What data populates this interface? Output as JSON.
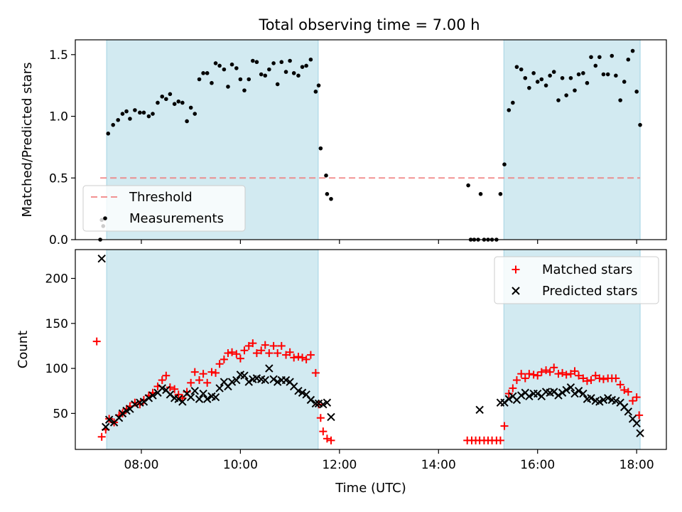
{
  "chart_data": [
    {
      "type": "scatter",
      "title": "Total observing time = 7.00 h",
      "xlabel": "",
      "ylabel": "Matched/Predicted stars",
      "xlim": [
        6.6667,
        18.6
      ],
      "ylim": [
        0,
        1.62
      ],
      "yticks": [
        0.0,
        0.5,
        1.0,
        1.5
      ],
      "ytick_labels": [
        "0.0",
        "0.5",
        "1.0",
        "1.5"
      ],
      "shaded_intervals": [
        [
          7.3,
          11.57
        ],
        [
          15.32,
          18.07
        ]
      ],
      "shade_color": "#add8e6",
      "threshold": {
        "name": "Threshold",
        "value": 0.5,
        "x_range": [
          7.17,
          18.07
        ],
        "color": "#f08080"
      },
      "legend": {
        "position": "lower-left",
        "entries": [
          "Threshold",
          "Measurements"
        ]
      },
      "series": [
        {
          "name": "Measurements",
          "color": "#000000",
          "x": [
            7.17,
            7.2,
            7.23,
            7.33,
            7.43,
            7.53,
            7.62,
            7.7,
            7.77,
            7.87,
            7.97,
            8.05,
            8.15,
            8.23,
            8.33,
            8.42,
            8.5,
            8.58,
            8.67,
            8.75,
            8.83,
            8.92,
            9.0,
            9.08,
            9.17,
            9.25,
            9.33,
            9.42,
            9.5,
            9.58,
            9.67,
            9.75,
            9.83,
            9.92,
            10.0,
            10.08,
            10.17,
            10.25,
            10.33,
            10.42,
            10.5,
            10.58,
            10.67,
            10.75,
            10.83,
            10.92,
            11.0,
            11.08,
            11.17,
            11.25,
            11.33,
            11.42,
            11.52,
            11.58,
            11.62,
            11.73,
            11.75,
            11.83,
            14.6,
            14.65,
            14.72,
            14.8,
            14.85,
            14.92,
            15.0,
            15.08,
            15.17,
            15.25,
            15.33,
            15.42,
            15.5,
            15.58,
            15.67,
            15.75,
            15.83,
            15.92,
            16.0,
            16.08,
            16.17,
            16.25,
            16.33,
            16.42,
            16.5,
            16.58,
            16.67,
            16.75,
            16.83,
            16.92,
            17.0,
            17.08,
            17.17,
            17.25,
            17.33,
            17.42,
            17.5,
            17.58,
            17.67,
            17.75,
            17.83,
            17.92,
            18.0,
            18.07
          ],
          "y": [
            0.0,
            0.16,
            0.11,
            0.86,
            0.93,
            0.97,
            1.02,
            1.04,
            0.98,
            1.05,
            1.03,
            1.03,
            1.0,
            1.02,
            1.11,
            1.16,
            1.14,
            1.18,
            1.1,
            1.12,
            1.11,
            0.96,
            1.07,
            1.02,
            1.3,
            1.35,
            1.35,
            1.27,
            1.43,
            1.41,
            1.38,
            1.24,
            1.42,
            1.39,
            1.3,
            1.21,
            1.3,
            1.45,
            1.44,
            1.34,
            1.33,
            1.38,
            1.43,
            1.26,
            1.44,
            1.36,
            1.45,
            1.35,
            1.33,
            1.4,
            1.41,
            1.46,
            1.2,
            1.25,
            0.74,
            0.52,
            0.37,
            0.33,
            0.44,
            0.0,
            0.0,
            0.0,
            0.37,
            0.0,
            0.0,
            0.0,
            0.0,
            0.37,
            0.61,
            1.05,
            1.11,
            1.4,
            1.38,
            1.31,
            1.23,
            1.35,
            1.28,
            1.3,
            1.25,
            1.33,
            1.36,
            1.13,
            1.31,
            1.17,
            1.31,
            1.21,
            1.34,
            1.35,
            1.27,
            1.48,
            1.41,
            1.48,
            1.34,
            1.34,
            1.49,
            1.33,
            1.13,
            1.28,
            1.46,
            1.53,
            1.2,
            0.93
          ]
        }
      ]
    },
    {
      "type": "scatter",
      "title": "",
      "xlabel": "Time (UTC)",
      "ylabel": "Count",
      "xlim": [
        6.6667,
        18.6
      ],
      "ylim": [
        10,
        232
      ],
      "yticks": [
        50,
        100,
        150,
        200
      ],
      "ytick_labels": [
        "50",
        "100",
        "150",
        "200"
      ],
      "xticks": [
        8,
        10,
        12,
        14,
        16,
        18
      ],
      "xtick_labels": [
        "08:00",
        "10:00",
        "12:00",
        "14:00",
        "16:00",
        "18:00"
      ],
      "shaded_intervals": [
        [
          7.3,
          11.57
        ],
        [
          15.32,
          18.07
        ]
      ],
      "shade_color": "#add8e6",
      "legend": {
        "position": "upper-right",
        "entries": [
          "Matched stars",
          "Predicted stars"
        ]
      },
      "series": [
        {
          "name": "Matched stars",
          "marker": "plus",
          "color": "#ff0000",
          "x": [
            7.1,
            7.2,
            7.28,
            7.35,
            7.45,
            7.55,
            7.62,
            7.7,
            7.77,
            7.87,
            7.97,
            8.05,
            8.15,
            8.23,
            8.33,
            8.42,
            8.5,
            8.58,
            8.67,
            8.75,
            8.83,
            8.92,
            9.0,
            9.08,
            9.17,
            9.25,
            9.33,
            9.42,
            9.5,
            9.58,
            9.67,
            9.75,
            9.83,
            9.92,
            10.0,
            10.08,
            10.17,
            10.25,
            10.33,
            10.42,
            10.5,
            10.58,
            10.67,
            10.75,
            10.83,
            10.92,
            11.0,
            11.08,
            11.17,
            11.25,
            11.33,
            11.42,
            11.52,
            11.58,
            11.62,
            11.67,
            11.75,
            11.83,
            14.58,
            14.67,
            14.75,
            14.83,
            14.92,
            15.0,
            15.08,
            15.17,
            15.25,
            15.33,
            15.42,
            15.5,
            15.58,
            15.67,
            15.75,
            15.83,
            15.92,
            16.0,
            16.08,
            16.17,
            16.25,
            16.33,
            16.42,
            16.5,
            16.58,
            16.67,
            16.75,
            16.83,
            16.92,
            17.0,
            17.08,
            17.17,
            17.25,
            17.33,
            17.42,
            17.5,
            17.58,
            17.67,
            17.75,
            17.83,
            17.92,
            18.0,
            18.05
          ],
          "y": [
            130,
            24,
            32,
            44,
            40,
            48,
            50,
            55,
            58,
            62,
            60,
            65,
            70,
            73,
            80,
            87,
            92,
            79,
            77,
            71,
            67,
            74,
            84,
            96,
            87,
            94,
            84,
            96,
            95,
            105,
            110,
            117,
            118,
            116,
            111,
            120,
            125,
            128,
            117,
            120,
            126,
            117,
            125,
            117,
            125,
            115,
            118,
            112,
            113,
            112,
            110,
            115,
            95,
            60,
            45,
            30,
            22,
            20,
            20,
            20,
            20,
            20,
            20,
            20,
            20,
            20,
            20,
            36,
            72,
            78,
            87,
            94,
            89,
            94,
            93,
            92,
            96,
            98,
            96,
            101,
            94,
            95,
            93,
            94,
            97,
            92,
            89,
            86,
            87,
            92,
            89,
            88,
            89,
            89,
            89,
            82,
            76,
            74,
            64,
            68,
            48
          ]
        },
        {
          "name": "Predicted stars",
          "marker": "x",
          "color": "#000000",
          "x": [
            7.2,
            7.28,
            7.35,
            7.45,
            7.55,
            7.62,
            7.7,
            7.77,
            7.87,
            7.97,
            8.05,
            8.15,
            8.23,
            8.33,
            8.42,
            8.5,
            8.58,
            8.67,
            8.75,
            8.83,
            8.92,
            9.0,
            9.08,
            9.17,
            9.25,
            9.33,
            9.42,
            9.5,
            9.58,
            9.67,
            9.75,
            9.83,
            9.92,
            10.0,
            10.08,
            10.17,
            10.25,
            10.33,
            10.42,
            10.5,
            10.58,
            10.67,
            10.75,
            10.83,
            10.92,
            11.0,
            11.08,
            11.17,
            11.25,
            11.33,
            11.42,
            11.52,
            11.58,
            11.67,
            11.75,
            11.83,
            14.83,
            15.25,
            15.33,
            15.42,
            15.5,
            15.58,
            15.67,
            15.75,
            15.83,
            15.92,
            16.0,
            16.08,
            16.17,
            16.25,
            16.33,
            16.42,
            16.5,
            16.58,
            16.67,
            16.75,
            16.83,
            16.92,
            17.0,
            17.08,
            17.17,
            17.25,
            17.33,
            17.42,
            17.5,
            17.58,
            17.67,
            17.75,
            17.83,
            17.92,
            18.0,
            18.07
          ],
          "y": [
            222,
            35,
            43,
            40,
            45,
            50,
            53,
            55,
            60,
            62,
            63,
            67,
            70,
            73,
            78,
            76,
            71,
            67,
            66,
            63,
            72,
            68,
            75,
            66,
            72,
            66,
            69,
            68,
            78,
            85,
            80,
            85,
            87,
            93,
            92,
            85,
            88,
            89,
            88,
            87,
            100,
            88,
            85,
            87,
            87,
            85,
            80,
            75,
            73,
            71,
            65,
            61,
            61,
            60,
            62,
            46,
            54,
            62,
            62,
            66,
            69,
            65,
            70,
            73,
            69,
            72,
            72,
            69,
            74,
            73,
            74,
            70,
            73,
            76,
            79,
            72,
            75,
            72,
            66,
            67,
            64,
            63,
            65,
            67,
            65,
            64,
            62,
            57,
            52,
            44,
            39,
            28
          ]
        }
      ]
    }
  ]
}
